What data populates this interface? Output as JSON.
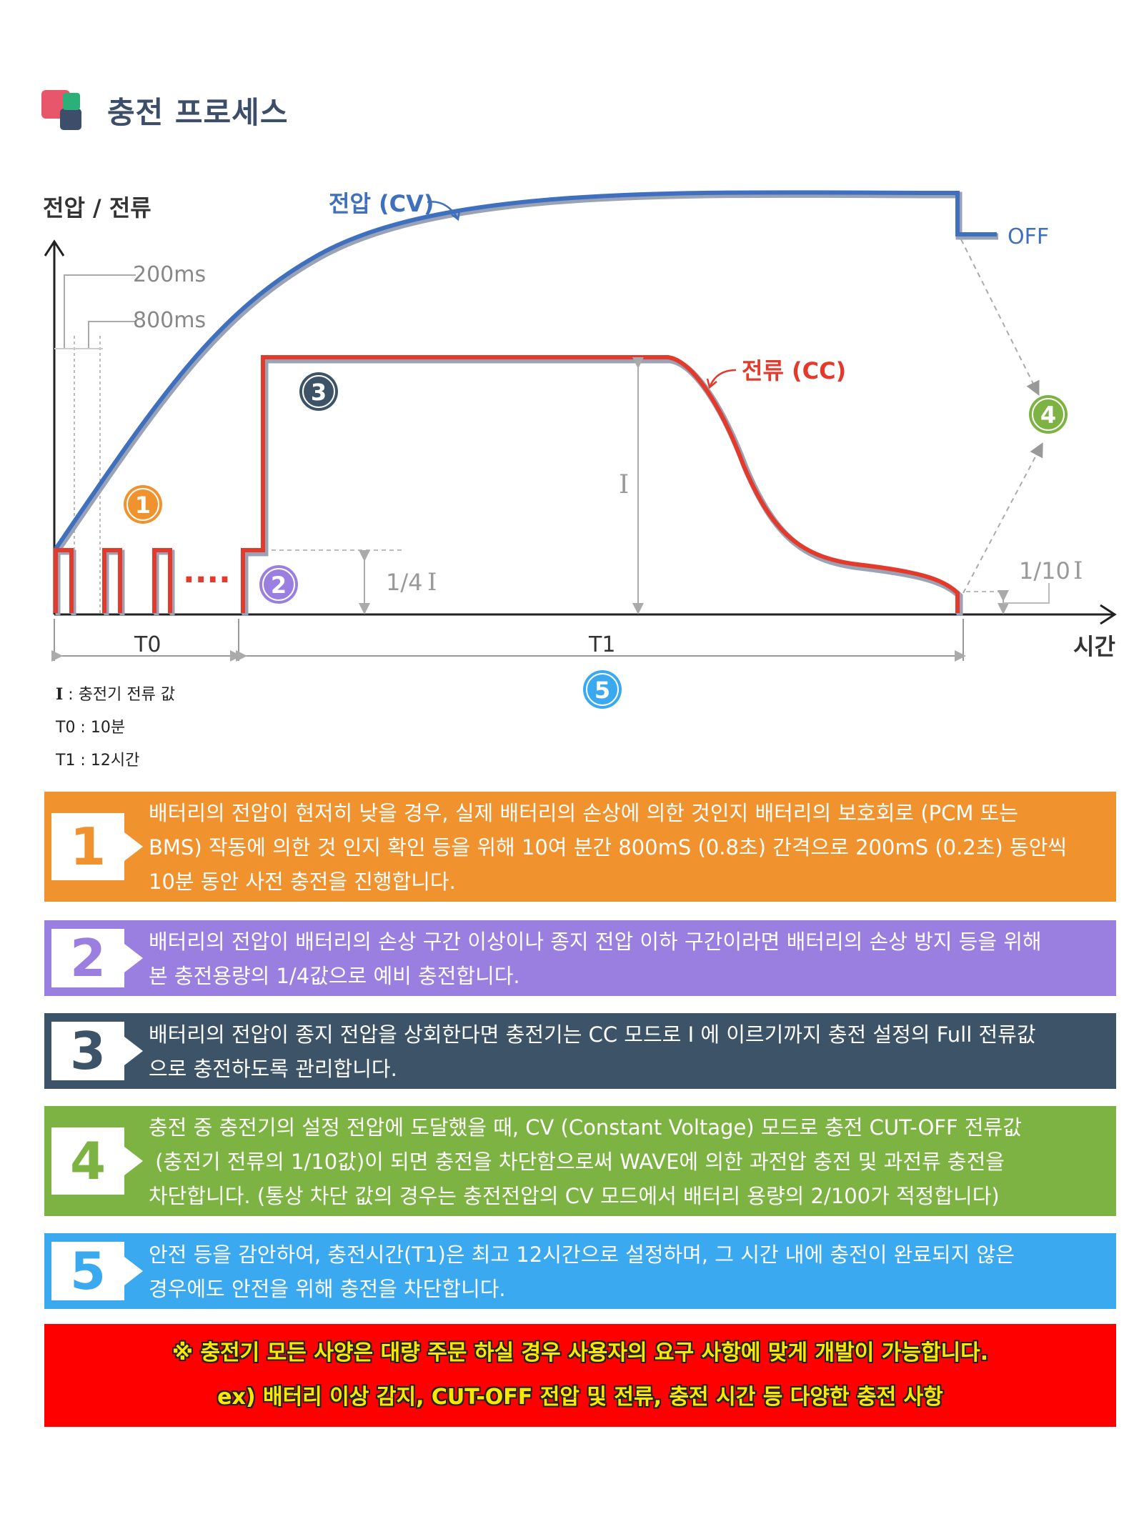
{
  "page": {
    "title": "충전 프로세스"
  },
  "diagram": {
    "y_axis_label": "전압 / 전류",
    "x_axis_label": "시간",
    "voltage_label": "전압 (CV)",
    "current_label": "전류 (CC)",
    "off_label": "OFF",
    "pulse_200": "200ms",
    "pulse_800": "800ms",
    "quarter_label": "1/4",
    "tenth_label": "1/10",
    "i_label": "I",
    "t0_label": "T0",
    "t1_label": "T1",
    "dots": "····",
    "markers": [
      "1",
      "2",
      "3",
      "4",
      "5"
    ],
    "colors": {
      "voltage": "#3f6fbf",
      "current": "#e33a2c",
      "m1": "#f0922e",
      "m2": "#9a7ee0",
      "m3": "#3d5468",
      "m4": "#7cb342",
      "m5": "#3aa9ef"
    }
  },
  "legend": {
    "i_symbol": "I",
    "i_text": " : 충전기 전류 값",
    "t0": "T0 : 10분",
    "t1": "T1 : 12시간"
  },
  "steps": [
    {
      "num": "1",
      "color": "#f0922e",
      "lines": [
        "배터리의 전압이 현저히 낮을 경우, 실제 배터리의 손상에 의한 것인지 배터리의 보호회로 (PCM 또는",
        "BMS) 작동에 의한 것 인지 확인 등을 위해 10여 분간 800mS (0.8초) 간격으로 200mS (0.2초) 동안씩",
        "10분 동안 사전 충전을 진행합니다."
      ]
    },
    {
      "num": "2",
      "color": "#9a7ee0",
      "lines": [
        "배터리의 전압이 배터리의 손상 구간 이상이나 종지 전압 이하 구간이라면 배터리의 손상 방지 등을 위해",
        "본 충전용량의 1/4값으로 예비 충전합니다."
      ]
    },
    {
      "num": "3",
      "color": "#3d5468",
      "lines": [
        "배터리의 전압이 종지 전압을 상회한다면 충전기는 CC 모드로 I 에 이르기까지 충전 설정의 Full 전류값",
        "으로 충전하도록 관리합니다."
      ]
    },
    {
      "num": "4",
      "color": "#7cb342",
      "lines": [
        "충전 중 충전기의 설정 전압에 도달했을 때, CV (Constant Voltage) 모드로 충전 CUT-OFF 전류값",
        " (충전기 전류의 1/10값)이 되면 충전을 차단함으로써 WAVE에 의한 과전압 충전 및 과전류 충전을",
        "차단합니다. (통상 차단 값의 경우는 충전전압의 CV 모드에서 배터리 용량의 2/100가 적정합니다)"
      ]
    },
    {
      "num": "5",
      "color": "#3aa9ef",
      "lines": [
        "안전 등을 감안하여, 충전시간(T1)은 최고 12시간으로 설정하며, 그 시간 내에 충전이 완료되지 않은",
        "경우에도 안전을 위해 충전을 차단합니다."
      ]
    }
  ],
  "notice": {
    "line1": "※ 충전기 모든 사양은 대량 주문 하실 경우 사용자의 요구 사항에 맞게 개발이 가능합니다.",
    "line2": "ex) 배터리 이상 감지, CUT-OFF 전압 및 전류, 충전 시간 등 다양한 충전 사항"
  }
}
